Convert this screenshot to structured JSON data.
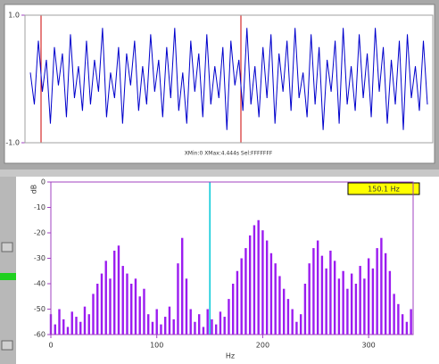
{
  "chart_data": [
    {
      "type": "line",
      "color": "#0000cc",
      "ylim": [
        -1,
        1
      ],
      "yticks": [
        {
          "value": 1,
          "label": "1.0"
        },
        {
          "value": -1,
          "label": "-1.0"
        }
      ],
      "footer": "XMin:0 XMax:4.444s Sel:FFFFFFF",
      "values": [
        0.1,
        -0.4,
        0.6,
        -0.2,
        0.3,
        -0.7,
        0.5,
        -0.1,
        0.4,
        -0.6,
        0.7,
        -0.3,
        0.2,
        -0.5,
        0.6,
        -0.4,
        0.3,
        -0.2,
        0.8,
        -0.6,
        0.1,
        -0.3,
        0.5,
        -0.7,
        0.4,
        -0.1,
        0.6,
        -0.5,
        0.2,
        -0.4,
        0.7,
        -0.2,
        0.3,
        -0.6,
        0.5,
        -0.3,
        0.8,
        -0.5,
        0.1,
        -0.7,
        0.6,
        -0.2,
        0.4,
        -0.6,
        0.7,
        -0.4,
        0.2,
        -0.3,
        0.5,
        -0.8,
        0.6,
        -0.1,
        0.3,
        -0.5,
        0.8,
        -0.4,
        0.2,
        -0.6,
        0.5,
        -0.3,
        0.7,
        -0.7,
        0.4,
        -0.2,
        0.6,
        -0.5,
        0.8,
        -0.3,
        0.1,
        -0.6,
        0.7,
        -0.4,
        0.5,
        -0.8,
        0.3,
        -0.2,
        0.6,
        -0.7,
        0.8,
        -0.4,
        0.2,
        -0.5,
        0.7,
        -0.3,
        0.4,
        -0.6,
        0.8,
        -0.2,
        0.5,
        -0.7,
        0.3,
        -0.4,
        0.6,
        -0.8,
        0.7,
        -0.3,
        0.2,
        -0.5,
        0.6,
        -0.4
      ]
    },
    {
      "type": "bar",
      "color": "#9b1cf0",
      "xlabel": "Hz",
      "ylabel": "dB",
      "xlim": [
        0,
        342
      ],
      "xticks": [
        0,
        100,
        200,
        300
      ],
      "ylim": [
        -60,
        0
      ],
      "yticks": [
        0,
        -10,
        -20,
        -30,
        -40,
        -50,
        -60
      ],
      "cursor": 150.1,
      "cursor_label": "150.1 Hz",
      "x": [
        0,
        4,
        8,
        12,
        16,
        20,
        24,
        28,
        32,
        36,
        40,
        44,
        48,
        52,
        56,
        60,
        64,
        68,
        72,
        76,
        80,
        84,
        88,
        92,
        96,
        100,
        104,
        108,
        112,
        116,
        120,
        124,
        128,
        132,
        136,
        140,
        144,
        148,
        152,
        156,
        160,
        164,
        168,
        172,
        176,
        180,
        184,
        188,
        192,
        196,
        200,
        204,
        208,
        212,
        216,
        220,
        224,
        228,
        232,
        236,
        240,
        244,
        248,
        252,
        256,
        260,
        264,
        268,
        272,
        276,
        280,
        284,
        288,
        292,
        296,
        300,
        304,
        308,
        312,
        316,
        320,
        324,
        328,
        332,
        336,
        340
      ],
      "values": [
        -52,
        -56,
        -50,
        -54,
        -57,
        -51,
        -53,
        -55,
        -49,
        -52,
        -44,
        -40,
        -36,
        -31,
        -38,
        -27,
        -25,
        -33,
        -36,
        -40,
        -38,
        -45,
        -42,
        -52,
        -55,
        -50,
        -56,
        -53,
        -49,
        -54,
        -32,
        -22,
        -38,
        -50,
        -55,
        -52,
        -57,
        -50,
        -54,
        -56,
        -51,
        -53,
        -46,
        -40,
        -35,
        -30,
        -26,
        -21,
        -17,
        -15,
        -19,
        -23,
        -28,
        -32,
        -37,
        -42,
        -46,
        -50,
        -55,
        -52,
        -40,
        -32,
        -26,
        -23,
        -29,
        -34,
        -27,
        -31,
        -38,
        -35,
        -42,
        -36,
        -40,
        -33,
        -38,
        -30,
        -34,
        -26,
        -22,
        -28,
        -35,
        -44,
        -48,
        -52,
        -55,
        -50
      ]
    }
  ]
}
